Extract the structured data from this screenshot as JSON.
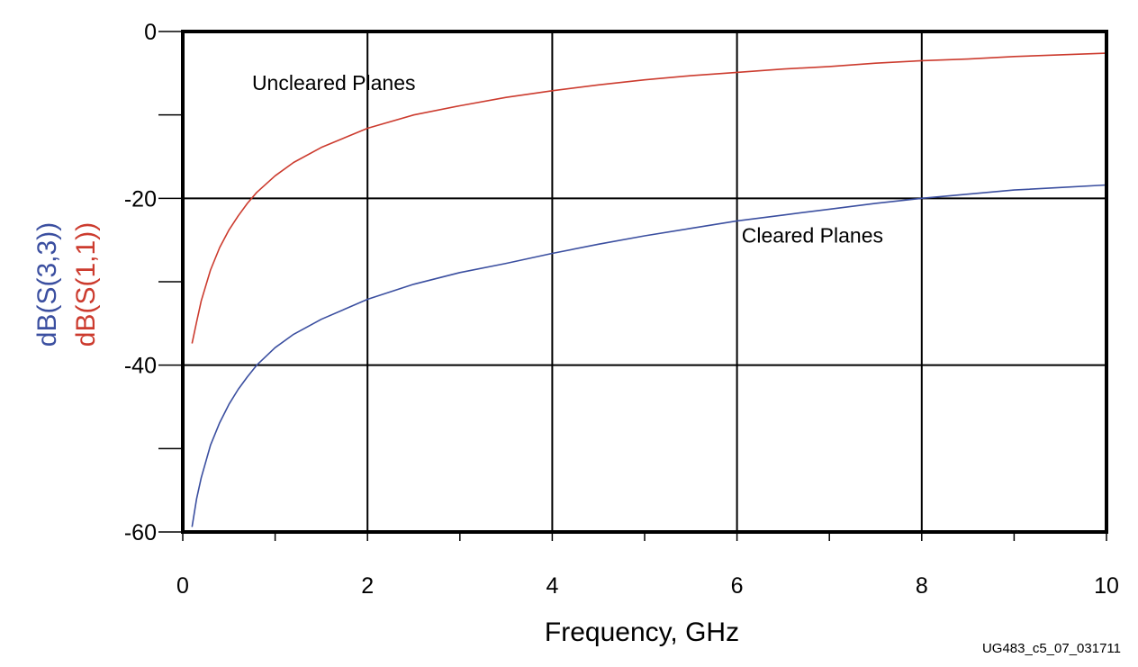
{
  "figure_id": "UG483_c5_07_031711",
  "chart_data": {
    "type": "line",
    "xlabel": "Frequency, GHz",
    "ylabels": [
      {
        "text": "dB(S(3,3))",
        "color": "#3b4fa0"
      },
      {
        "text": "dB(S(1,1))",
        "color": "#cc3b2e"
      }
    ],
    "xlim": [
      0,
      10
    ],
    "ylim": [
      -60,
      0
    ],
    "x_major_ticks": [
      0,
      2,
      4,
      6,
      8,
      10
    ],
    "x_minor_ticks": [
      1,
      3,
      5,
      7,
      9
    ],
    "y_major_ticks": [
      0,
      -20,
      -40,
      -60
    ],
    "y_minor_ticks": [
      -10,
      -30,
      -50
    ],
    "grid": true,
    "series": [
      {
        "key": "uncleared",
        "color": "#cc3b2e",
        "x": [
          0.1,
          0.15,
          0.2,
          0.3,
          0.4,
          0.5,
          0.6,
          0.7,
          0.8,
          1.0,
          1.2,
          1.5,
          2.0,
          2.5,
          3.0,
          3.5,
          4.0,
          4.5,
          5.0,
          5.5,
          6.0,
          6.5,
          7.0,
          7.5,
          8.0,
          8.5,
          9.0,
          9.5,
          10.0
        ],
        "y": [
          -37.4,
          -34.8,
          -32.3,
          -28.6,
          -25.9,
          -23.8,
          -22.1,
          -20.6,
          -19.3,
          -17.3,
          -15.7,
          -13.9,
          -11.6,
          -10.0,
          -8.9,
          -7.9,
          -7.1,
          -6.4,
          -5.8,
          -5.3,
          -4.9,
          -4.5,
          -4.2,
          -3.8,
          -3.5,
          -3.3,
          -3.0,
          -2.8,
          -2.6
        ]
      },
      {
        "key": "cleared",
        "color": "#3b4fa0",
        "x": [
          0.1,
          0.15,
          0.2,
          0.3,
          0.4,
          0.5,
          0.6,
          0.7,
          0.8,
          1.0,
          1.2,
          1.5,
          2.0,
          2.5,
          3.0,
          3.5,
          4.0,
          4.5,
          5.0,
          5.5,
          6.0,
          6.5,
          7.0,
          7.5,
          8.0,
          8.5,
          9.0,
          9.5,
          10.0
        ],
        "y": [
          -59.4,
          -56.0,
          -53.5,
          -49.6,
          -46.9,
          -44.7,
          -42.9,
          -41.4,
          -40.0,
          -37.9,
          -36.3,
          -34.5,
          -32.1,
          -30.3,
          -28.9,
          -27.8,
          -26.6,
          -25.5,
          -24.5,
          -23.6,
          -22.7,
          -22.0,
          -21.3,
          -20.6,
          -20.0,
          -19.5,
          -19.0,
          -18.7,
          -18.4
        ]
      }
    ],
    "annotations": [
      {
        "text": "Uncleared Planes",
        "x": 0.75,
        "y": -7.0
      },
      {
        "text": "Cleared Planes",
        "x": 6.05,
        "y": -25.3
      }
    ]
  }
}
